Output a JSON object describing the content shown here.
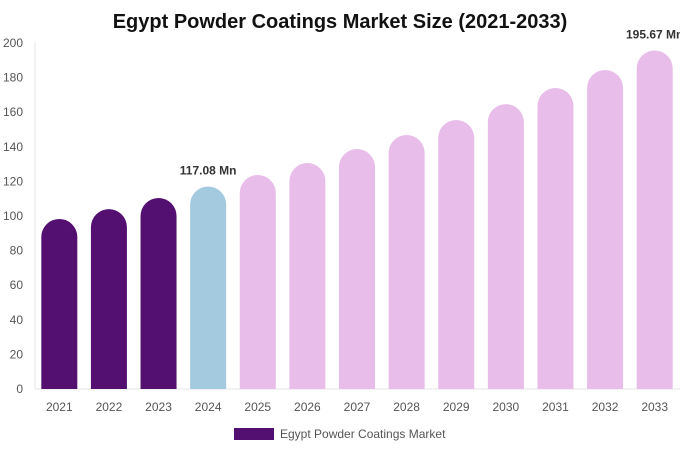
{
  "chart_data": {
    "type": "bar",
    "title": "Egypt Powder Coatings Market Size (2021-2033)",
    "categories": [
      "2021",
      "2022",
      "2023",
      "2024",
      "2025",
      "2026",
      "2027",
      "2028",
      "2029",
      "2030",
      "2031",
      "2032",
      "2033"
    ],
    "series": [
      {
        "name": "Egypt Powder Coatings Market",
        "values": [
          98.3,
          104.0,
          110.4,
          117.08,
          123.7,
          130.6,
          138.7,
          146.8,
          155.5,
          164.7,
          174.0,
          184.4,
          195.67
        ]
      }
    ],
    "bar_colors": [
      "#541070",
      "#541070",
      "#541070",
      "#a3cadf",
      "#e8bde9",
      "#e8bde9",
      "#e8bde9",
      "#e8bde9",
      "#e8bde9",
      "#e8bde9",
      "#e8bde9",
      "#e8bde9",
      "#e8bde9"
    ],
    "data_labels": [
      {
        "category": "2024",
        "text": "117.08 Mn"
      },
      {
        "category": "2033",
        "text": "195.67 Mn"
      }
    ],
    "ylim": [
      0,
      200
    ],
    "yticks": [
      0,
      20,
      40,
      60,
      80,
      100,
      120,
      140,
      160,
      180,
      200
    ],
    "xlabel": "",
    "ylabel": "",
    "grid": false,
    "legend_position": "bottom",
    "legend_color": "#541070"
  }
}
